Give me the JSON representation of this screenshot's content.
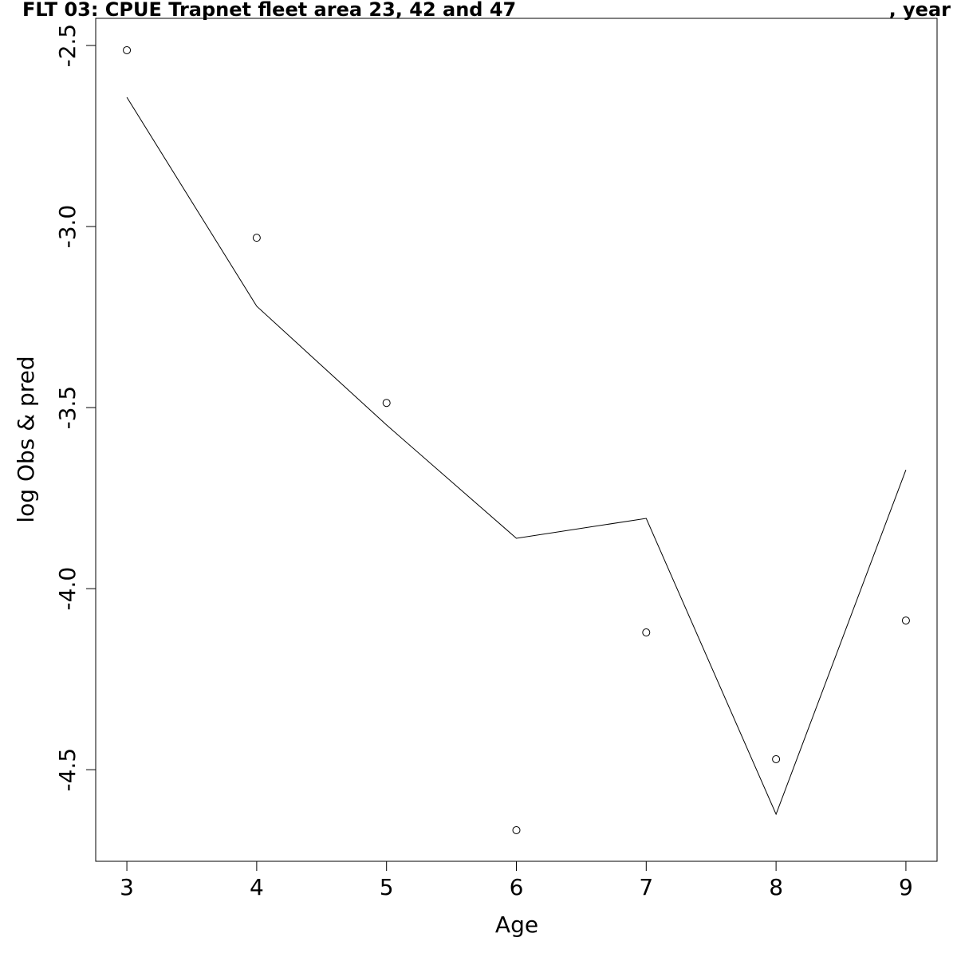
{
  "chart_data": {
    "type": "line",
    "title": "FLT 03: CPUE Trapnet fleet area 23, 42 and 47",
    "title_right": ", year",
    "x_label": "Age",
    "y_label": "log Obs & pred",
    "x": [
      3,
      4,
      5,
      6,
      7,
      8,
      9
    ],
    "series": [
      {
        "style": "points",
        "color": "#000000",
        "values": [
          -2.513,
          -3.031,
          -3.487,
          -4.667,
          -4.121,
          -4.471,
          -4.088
        ]
      },
      {
        "style": "line",
        "color": "#000000",
        "values": [
          -2.643,
          -3.22,
          -3.548,
          -3.861,
          -3.806,
          -4.623,
          -3.672
        ]
      }
    ],
    "xlim": [
      2.76,
      9.24
    ],
    "xticks": [
      3,
      4,
      5,
      6,
      7,
      8,
      9
    ],
    "ylim": [
      -4.753,
      -2.425
    ],
    "yticks": [
      -2.5,
      {
        "value": -3.0,
        "label": "-3.0"
      },
      -3.5,
      {
        "value": -4.0,
        "label": "-4.0"
      },
      -4.5
    ],
    "grid": false
  }
}
